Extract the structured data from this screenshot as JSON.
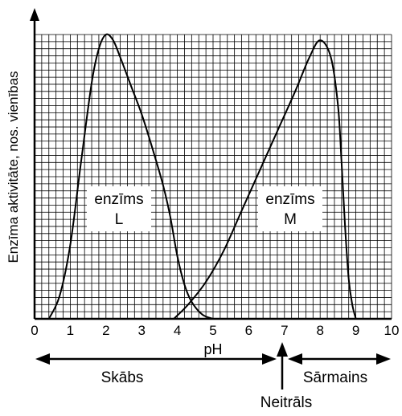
{
  "chart_data": {
    "type": "line",
    "xlabel": "pH",
    "ylabel": "Enzīma aktivitāte, nos. vienības",
    "xlim": [
      0,
      10
    ],
    "ylim": [
      0,
      100
    ],
    "x_ticks": [
      "0",
      "1",
      "2",
      "3",
      "4",
      "5",
      "6",
      "7",
      "8",
      "9",
      "10"
    ],
    "grid": true,
    "series": [
      {
        "name": "enzīms L",
        "label_line1": "enzīms",
        "label_line2": "L",
        "x": [
          0.4,
          0.7,
          1.0,
          1.3,
          1.6,
          1.8,
          2.0,
          2.2,
          2.4,
          2.7,
          3.0,
          3.3,
          3.6,
          3.8,
          4.0,
          4.2,
          4.4,
          4.7,
          5.0
        ],
        "y": [
          0,
          8,
          26,
          55,
          83,
          95,
          100,
          98,
          92,
          82,
          72,
          60,
          47,
          36,
          22,
          12,
          6,
          1.5,
          0
        ]
      },
      {
        "name": "enzīms M",
        "label_line1": "enzīms",
        "label_line2": "M",
        "x": [
          3.9,
          4.3,
          4.8,
          5.3,
          5.8,
          6.3,
          6.8,
          7.3,
          7.7,
          8.0,
          8.3,
          8.5,
          8.6,
          8.7,
          8.8,
          8.9,
          9.0
        ],
        "y": [
          0,
          5,
          13,
          24,
          38,
          52,
          66,
          80,
          92,
          98,
          92,
          75,
          55,
          32,
          14,
          5,
          0
        ]
      }
    ],
    "annotations": {
      "acidic": "Skābs",
      "neutral": "Neitrāls",
      "alkaline": "Sārmains"
    }
  }
}
